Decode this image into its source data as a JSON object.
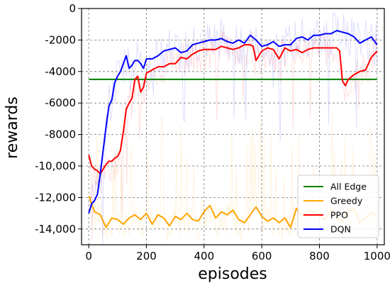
{
  "chart_data": {
    "type": "line",
    "title": "",
    "xlabel": "episodes",
    "ylabel": "rewards",
    "xlim": [
      -25,
      1025
    ],
    "ylim": [
      -15000,
      0
    ],
    "xticks": [
      0,
      200,
      400,
      600,
      800,
      1000
    ],
    "xtick_labels": [
      "0",
      "200",
      "400",
      "600",
      "800",
      "1000"
    ],
    "yticks": [
      0,
      -2000,
      -4000,
      -6000,
      -8000,
      -10000,
      -12000,
      -14000
    ],
    "ytick_labels": [
      "0",
      "-2000",
      "-4000",
      "-6000",
      "-8000",
      "-10,000",
      "-12,000",
      "-14,000"
    ],
    "grid": true,
    "legend_position": "lower-right",
    "series": [
      {
        "name": "All Edge",
        "color": "#008000",
        "x": [
          0,
          1000
        ],
        "y": [
          -4500,
          -4500
        ]
      },
      {
        "name": "Greedy",
        "color": "#FFA500",
        "x": [
          0,
          20,
          40,
          60,
          80,
          100,
          120,
          140,
          160,
          180,
          200,
          220,
          240,
          260,
          280,
          300,
          320,
          340,
          360,
          380,
          400,
          420,
          440,
          460,
          480,
          500,
          520,
          540,
          560,
          580,
          600,
          620,
          640,
          660,
          680,
          700,
          720,
          740,
          760,
          780,
          800,
          820,
          840,
          860,
          880,
          900,
          920,
          940,
          960,
          980,
          1000
        ],
        "y": [
          -11900,
          -12900,
          -13100,
          -13900,
          -13300,
          -13400,
          -13700,
          -13300,
          -13100,
          -13400,
          -13000,
          -13700,
          -13100,
          -13300,
          -13800,
          -13200,
          -13400,
          -13000,
          -13400,
          -13500,
          -12900,
          -12500,
          -13300,
          -12900,
          -13100,
          -12800,
          -13400,
          -13600,
          -13100,
          -12600,
          -13200,
          -13500,
          -13300,
          -13600,
          -13300,
          -13900,
          -12700,
          -13200,
          -12800,
          -12900,
          -13100,
          -13400,
          -12800,
          -13300,
          -13500,
          -12900,
          -12700,
          -13600,
          -13300,
          -12900,
          -13300
        ]
      },
      {
        "name": "PPO",
        "color": "#FF0000",
        "x": [
          0,
          10,
          20,
          30,
          40,
          50,
          60,
          70,
          80,
          90,
          100,
          110,
          120,
          130,
          140,
          150,
          160,
          170,
          180,
          190,
          200,
          220,
          240,
          260,
          280,
          300,
          320,
          340,
          360,
          380,
          400,
          420,
          440,
          460,
          480,
          500,
          520,
          540,
          560,
          570,
          580,
          600,
          620,
          640,
          660,
          680,
          700,
          720,
          740,
          760,
          780,
          800,
          820,
          840,
          860,
          870,
          880,
          890,
          900,
          920,
          940,
          960,
          980,
          1000
        ],
        "y": [
          -9300,
          -10000,
          -10200,
          -10300,
          -10500,
          -10200,
          -9900,
          -9700,
          -9700,
          -9500,
          -9400,
          -9000,
          -7800,
          -6400,
          -6000,
          -5700,
          -4500,
          -4300,
          -5300,
          -5000,
          -4100,
          -3900,
          -3700,
          -3700,
          -3500,
          -3500,
          -3100,
          -3200,
          -2900,
          -2700,
          -2600,
          -2600,
          -2600,
          -2400,
          -2500,
          -2600,
          -2500,
          -2300,
          -2300,
          -2400,
          -3300,
          -2700,
          -2500,
          -2600,
          -3200,
          -2500,
          -2700,
          -2600,
          -2800,
          -2600,
          -2500,
          -2500,
          -2500,
          -2500,
          -2500,
          -2700,
          -4600,
          -4900,
          -4500,
          -4200,
          -4000,
          -3900,
          -3100,
          -2700
        ]
      },
      {
        "name": "DQN",
        "color": "#0000FF",
        "x": [
          0,
          10,
          20,
          30,
          40,
          50,
          60,
          70,
          80,
          90,
          100,
          110,
          120,
          130,
          140,
          150,
          160,
          170,
          180,
          190,
          200,
          220,
          240,
          260,
          280,
          300,
          320,
          340,
          360,
          380,
          400,
          420,
          440,
          460,
          480,
          500,
          520,
          540,
          560,
          580,
          600,
          620,
          640,
          660,
          680,
          700,
          720,
          740,
          760,
          780,
          800,
          820,
          840,
          860,
          880,
          900,
          920,
          940,
          960,
          980,
          1000
        ],
        "y": [
          -13000,
          -12400,
          -12200,
          -11800,
          -10500,
          -9000,
          -7500,
          -6200,
          -5800,
          -4700,
          -4300,
          -4000,
          -3500,
          -3000,
          -3800,
          -3600,
          -3300,
          -3300,
          -3500,
          -3800,
          -3200,
          -3200,
          -3000,
          -2700,
          -2600,
          -2500,
          -2800,
          -2700,
          -2300,
          -2200,
          -2100,
          -2000,
          -2000,
          -1900,
          -2100,
          -2200,
          -2000,
          -2200,
          -1700,
          -2000,
          -2400,
          -2300,
          -2100,
          -2400,
          -2300,
          -2300,
          -1900,
          -1800,
          -2000,
          -1700,
          -1700,
          -1600,
          -1600,
          -1400,
          -1500,
          -1600,
          -1800,
          -2200,
          -2000,
          -1800,
          -2300
        ]
      }
    ]
  }
}
